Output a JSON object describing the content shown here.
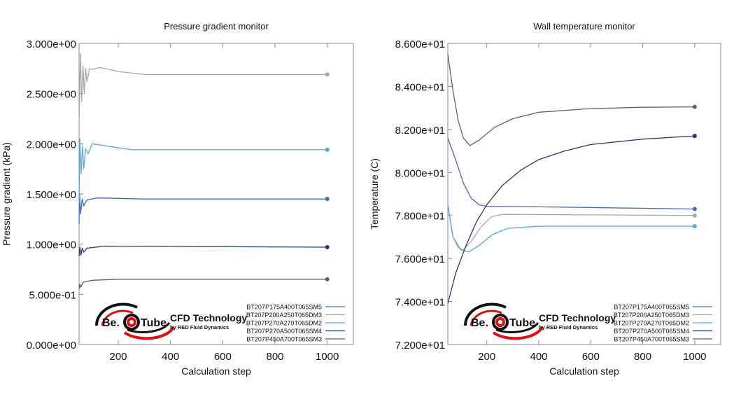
{
  "logo": {
    "brand": "Be. Tube",
    "title": "CFD Technology",
    "subtitle": "by RED Fluid Dynamics"
  },
  "chart_data": [
    {
      "type": "line",
      "title": "Pressure gradient monitor",
      "xlabel": "Calculation step",
      "ylabel": "Pressure gradient (kPa)",
      "xlim": [
        50,
        1100
      ],
      "ylim": [
        0,
        3
      ],
      "xticks": [
        200,
        400,
        600,
        800,
        1000
      ],
      "yticks": [
        0,
        0.5,
        1,
        1.5,
        2,
        2.5,
        3
      ],
      "ytick_labels": [
        "0.000e+00",
        "5.000e-01",
        "1.000e+00",
        "1.500e+00",
        "2.000e+00",
        "2.500e+00",
        "3.000e+00"
      ],
      "legend_placement": "bottom-right",
      "grid": false,
      "series": [
        {
          "name": "BT207P175A400T065SM5",
          "color": "#4a68b8",
          "points": [
            [
              50,
              1.2
            ],
            [
              52,
              1.5
            ],
            [
              56,
              1.3
            ],
            [
              62,
              1.45
            ],
            [
              68,
              1.38
            ],
            [
              80,
              1.44
            ],
            [
              120,
              1.46
            ],
            [
              300,
              1.45
            ],
            [
              1000,
              1.45
            ]
          ]
        },
        {
          "name": "BT207P200A250T065DM3",
          "color": "#a8a8a8",
          "points": [
            [
              50,
              2.2
            ],
            [
              55,
              2.9
            ],
            [
              60,
              2.42
            ],
            [
              65,
              2.78
            ],
            [
              70,
              2.5
            ],
            [
              75,
              2.75
            ],
            [
              80,
              2.62
            ],
            [
              90,
              2.75
            ],
            [
              100,
              2.74
            ],
            [
              130,
              2.76
            ],
            [
              200,
              2.72
            ],
            [
              300,
              2.69
            ],
            [
              1000,
              2.69
            ]
          ]
        },
        {
          "name": "BT207P270A270T065DM2",
          "color": "#5aa6d6",
          "points": [
            [
              50,
              1.4
            ],
            [
              53,
              2.05
            ],
            [
              58,
              1.7
            ],
            [
              63,
              1.98
            ],
            [
              68,
              1.75
            ],
            [
              75,
              1.95
            ],
            [
              85,
              1.9
            ],
            [
              100,
              2.0
            ],
            [
              150,
              1.98
            ],
            [
              250,
              1.94
            ],
            [
              1000,
              1.94
            ]
          ]
        },
        {
          "name": "BT207P270A500T065SM4",
          "color": "#253a68",
          "points": [
            [
              50,
              0.88
            ],
            [
              53,
              0.97
            ],
            [
              57,
              0.89
            ],
            [
              62,
              0.96
            ],
            [
              68,
              0.92
            ],
            [
              80,
              0.96
            ],
            [
              150,
              0.98
            ],
            [
              1000,
              0.97
            ]
          ]
        },
        {
          "name": "BT207P450A700T065SM3",
          "color": "#606060",
          "points": [
            [
              50,
              0.55
            ],
            [
              53,
              0.6
            ],
            [
              57,
              0.57
            ],
            [
              65,
              0.62
            ],
            [
              100,
              0.64
            ],
            [
              200,
              0.65
            ],
            [
              1000,
              0.65
            ]
          ]
        }
      ]
    },
    {
      "type": "line",
      "title": "Wall temperature monitor",
      "xlabel": "Calculation step",
      "ylabel": "Temperature (C)",
      "xlim": [
        50,
        1100
      ],
      "ylim": [
        72,
        86
      ],
      "xticks": [
        200,
        400,
        600,
        800,
        1000
      ],
      "yticks": [
        72,
        74,
        76,
        78,
        80,
        82,
        84,
        86
      ],
      "ytick_labels": [
        "7.200e+01",
        "7.400e+01",
        "7.600e+01",
        "7.800e+01",
        "8.000e+01",
        "8.200e+01",
        "8.400e+01",
        "8.600e+01"
      ],
      "legend_placement": "bottom-right",
      "grid": false,
      "series": [
        {
          "name": "BT207P175A400T065SM5",
          "color": "#4a68b8",
          "points": [
            [
              50,
              81.6
            ],
            [
              80,
              80.6
            ],
            [
              110,
              79.5
            ],
            [
              140,
              78.8
            ],
            [
              170,
              78.5
            ],
            [
              200,
              78.42
            ],
            [
              400,
              78.4
            ],
            [
              1000,
              78.3
            ]
          ]
        },
        {
          "name": "BT207P200A250T065DM3",
          "color": "#a8a8a8",
          "points": [
            [
              50,
              78.5
            ],
            [
              70,
              77.0
            ],
            [
              90,
              76.5
            ],
            [
              110,
              76.4
            ],
            [
              140,
              76.8
            ],
            [
              180,
              77.5
            ],
            [
              220,
              77.95
            ],
            [
              260,
              78.05
            ],
            [
              1000,
              78.0
            ]
          ]
        },
        {
          "name": "BT207P270A270T065DM2",
          "color": "#5aa6d6",
          "points": [
            [
              50,
              78.5
            ],
            [
              70,
              77.0
            ],
            [
              100,
              76.4
            ],
            [
              130,
              76.3
            ],
            [
              170,
              76.6
            ],
            [
              220,
              77.1
            ],
            [
              280,
              77.4
            ],
            [
              400,
              77.5
            ],
            [
              1000,
              77.5
            ]
          ]
        },
        {
          "name": "BT207P270A500T065SM4",
          "color": "#253a68",
          "points": [
            [
              50,
              73.9
            ],
            [
              80,
              75.3
            ],
            [
              120,
              76.6
            ],
            [
              160,
              77.7
            ],
            [
              200,
              78.5
            ],
            [
              260,
              79.4
            ],
            [
              330,
              80.1
            ],
            [
              400,
              80.6
            ],
            [
              500,
              81.0
            ],
            [
              600,
              81.3
            ],
            [
              800,
              81.55
            ],
            [
              1000,
              81.7
            ]
          ]
        },
        {
          "name": "BT207P450A700T065SM3",
          "color": "#606060",
          "points": [
            [
              50,
              85.5
            ],
            [
              70,
              83.8
            ],
            [
              90,
              82.4
            ],
            [
              110,
              81.6
            ],
            [
              135,
              81.25
            ],
            [
              170,
              81.5
            ],
            [
              230,
              82.1
            ],
            [
              300,
              82.5
            ],
            [
              400,
              82.8
            ],
            [
              600,
              82.97
            ],
            [
              800,
              83.03
            ],
            [
              1000,
              83.05
            ]
          ]
        }
      ]
    }
  ]
}
